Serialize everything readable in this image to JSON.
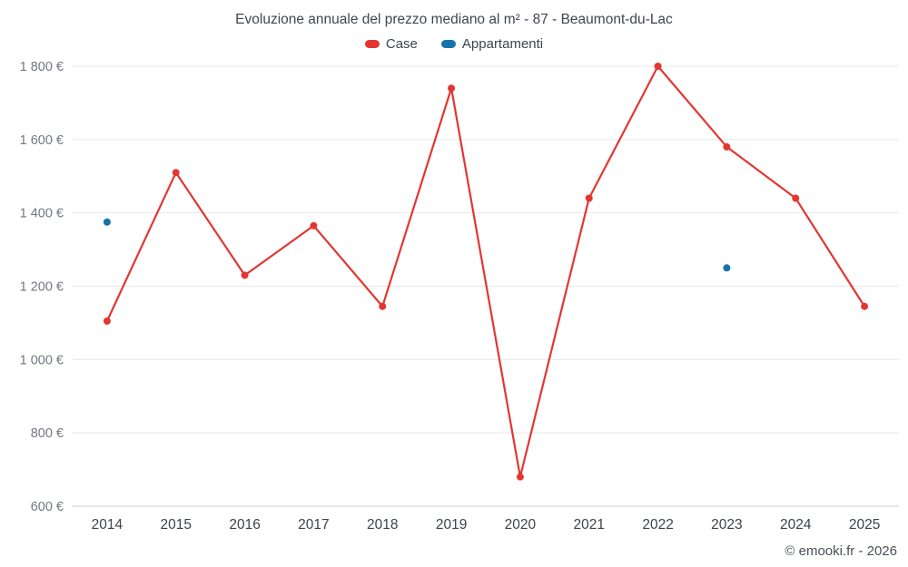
{
  "chart_data": {
    "type": "line",
    "title": "Evoluzione annuale del prezzo mediano al m² - 87 - Beaumont-du-Lac",
    "credit": "© emooki.fr - 2026",
    "x": [
      "2014",
      "2015",
      "2016",
      "2017",
      "2018",
      "2019",
      "2020",
      "2021",
      "2022",
      "2023",
      "2024",
      "2025"
    ],
    "ylim": [
      600,
      1800
    ],
    "grid": "horizontal",
    "legend_position": "top",
    "y_ticks": [
      {
        "value": 600,
        "label": "600 €"
      },
      {
        "value": 800,
        "label": "800 €"
      },
      {
        "value": 1000,
        "label": "1 000 €"
      },
      {
        "value": 1200,
        "label": "1 200 €"
      },
      {
        "value": 1400,
        "label": "1 400 €"
      },
      {
        "value": 1600,
        "label": "1 600 €"
      },
      {
        "value": 1800,
        "label": "1 800 €"
      }
    ],
    "series": [
      {
        "name": "Case",
        "type": "line",
        "color": "#e33632",
        "values": [
          1105,
          1510,
          1230,
          1365,
          1145,
          1740,
          680,
          1440,
          1800,
          1580,
          1440,
          1145
        ]
      },
      {
        "name": "Appartamenti",
        "type": "scatter",
        "color": "#1673ad",
        "values": [
          1375,
          null,
          null,
          null,
          null,
          null,
          null,
          null,
          null,
          1250,
          null,
          null
        ]
      }
    ]
  }
}
